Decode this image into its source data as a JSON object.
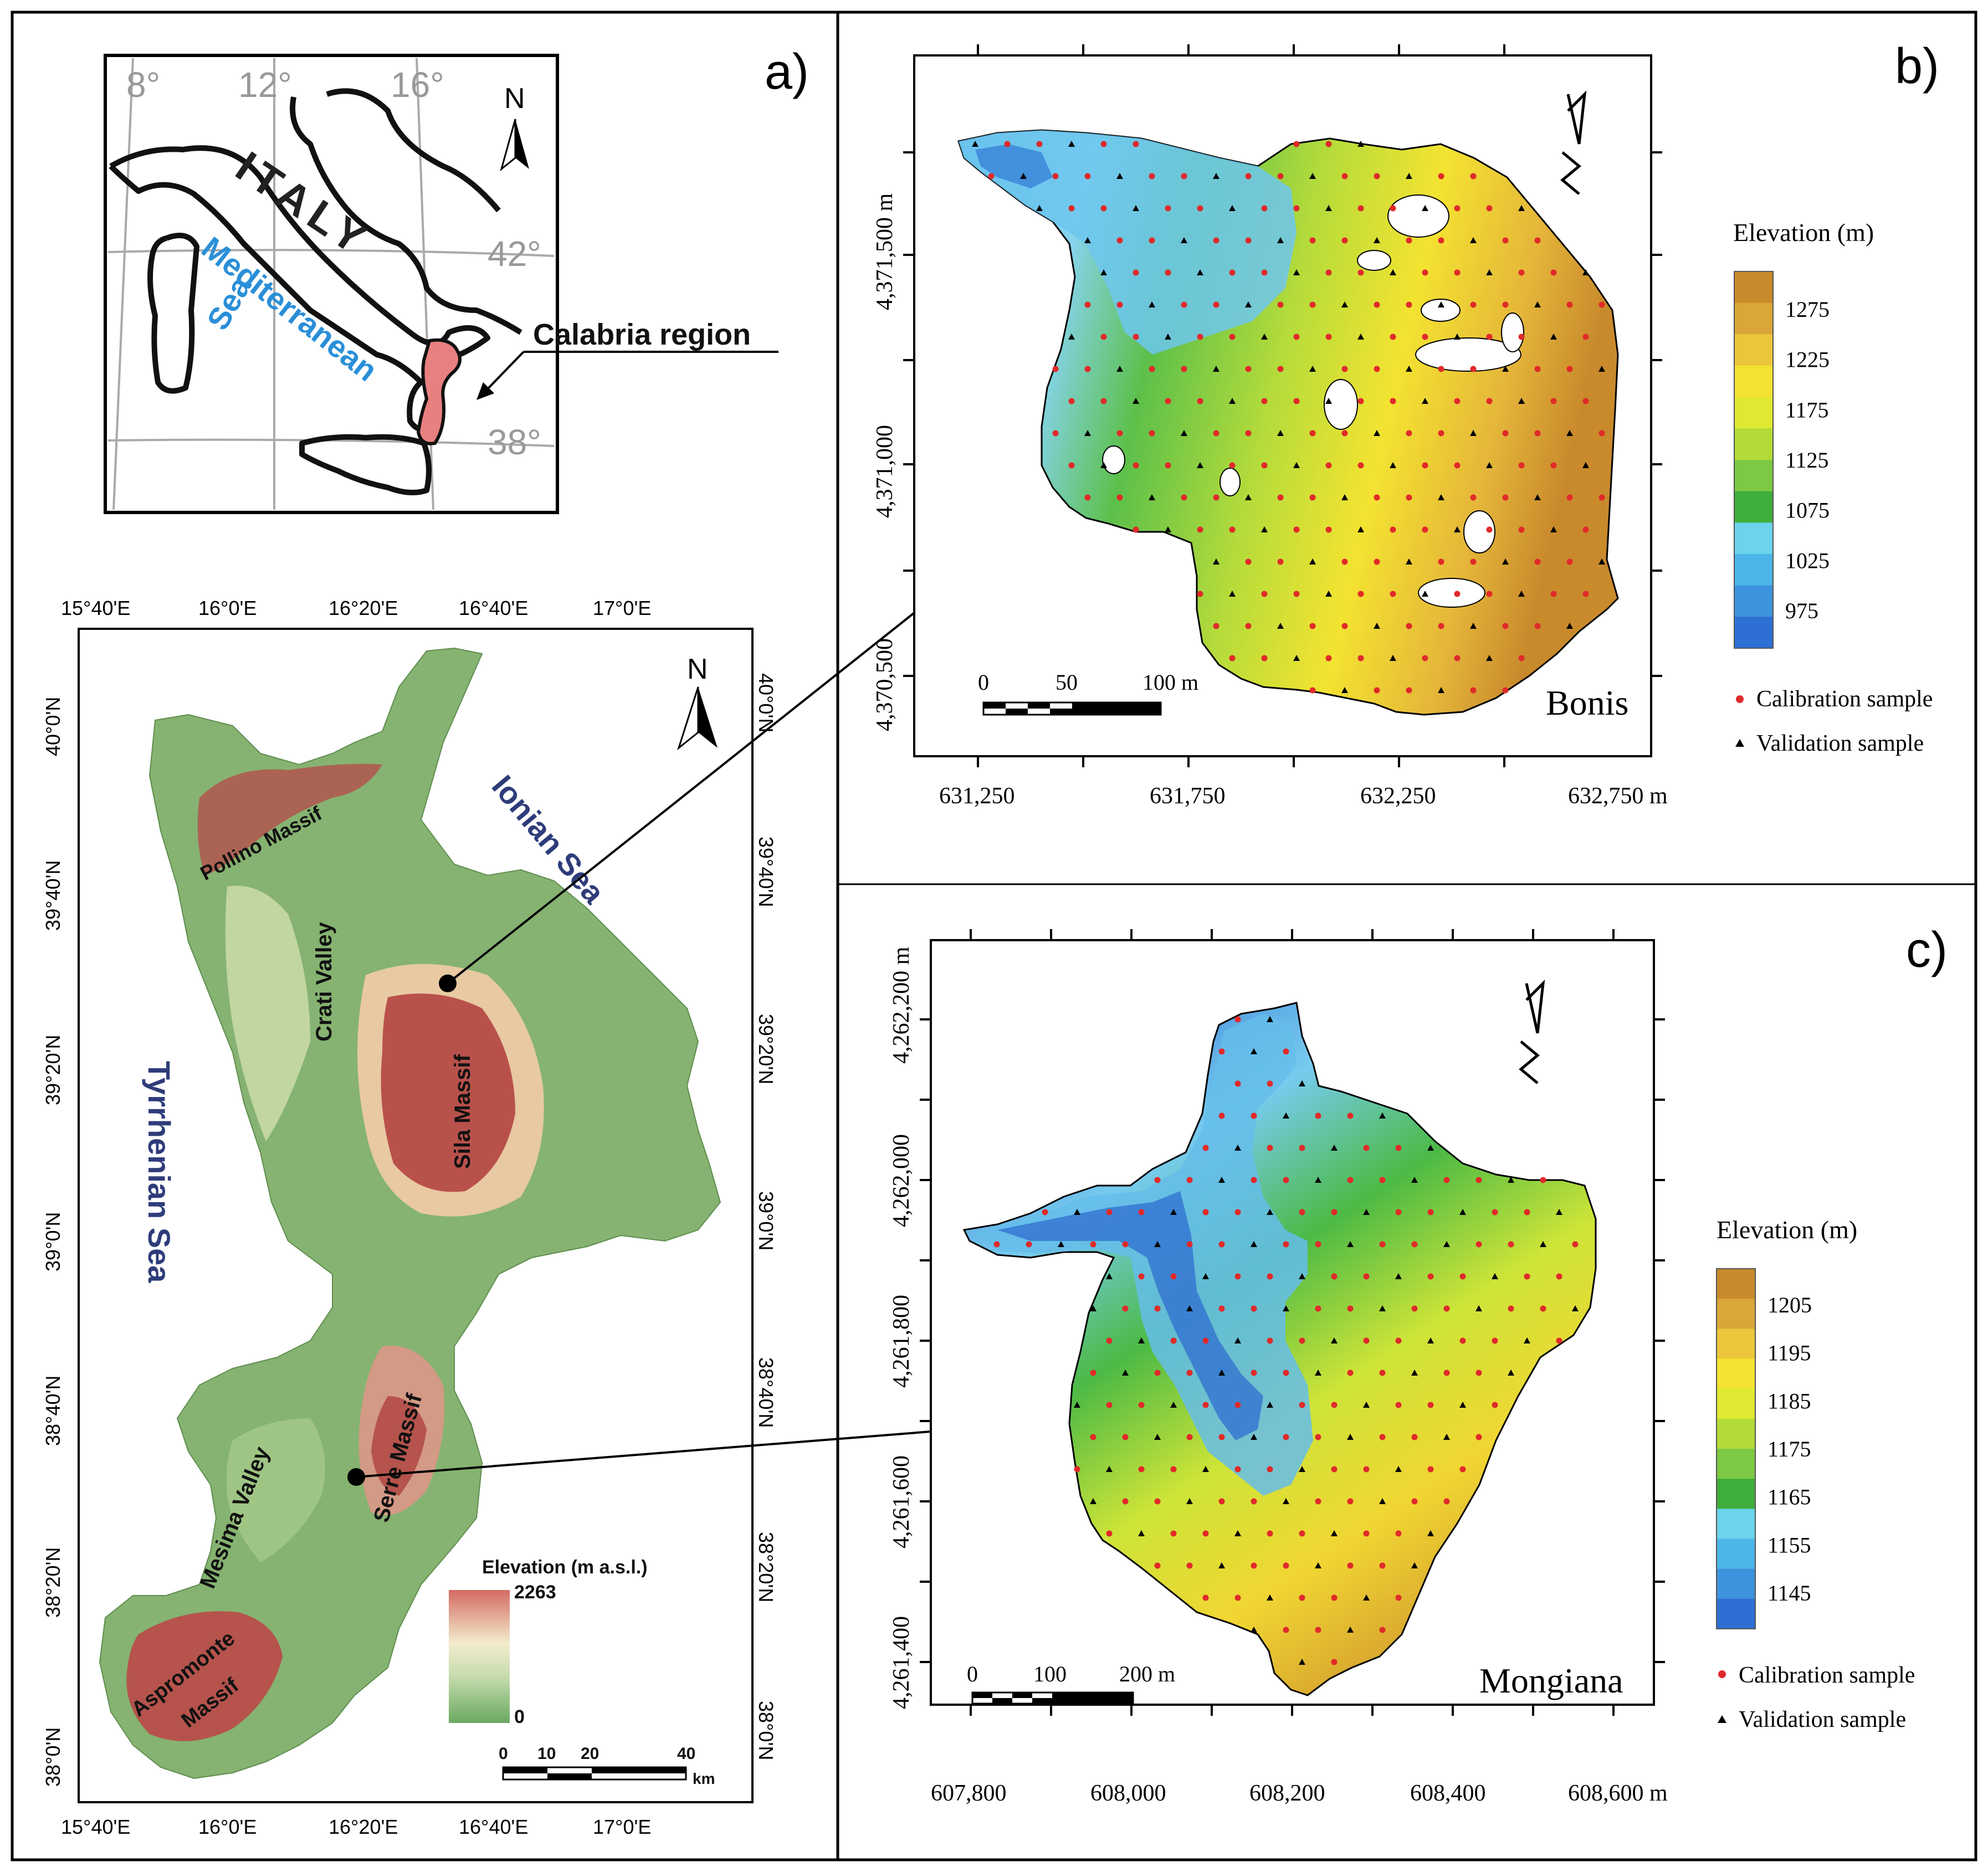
{
  "panels": {
    "a": {
      "label": "a)",
      "inset": {
        "lon_labels": [
          "8°",
          "12°",
          "16°"
        ],
        "lat_labels": [
          "42°",
          "38°"
        ],
        "north": "N",
        "country": "ITALY",
        "sea_line1": "Mediterranean",
        "sea_line2": "Sea",
        "region_label": "Calabria region"
      },
      "map": {
        "lon_ticks": [
          "15°40'E",
          "16°0'E",
          "16°20'E",
          "16°40'E",
          "17°0'E"
        ],
        "lat_ticks": [
          "40°0'N",
          "39°40'N",
          "39°20'N",
          "39°0'N",
          "38°40'N",
          "38°20'N",
          "38°0'N"
        ],
        "north": "N",
        "places": {
          "pollino": "Pollino Massif",
          "crati": "Crati Valley",
          "sila": "Sila Massif",
          "serre": "Serre Massif",
          "mesima": "Mesima Valley",
          "aspromonte_line1": "Aspromonte",
          "aspromonte_line2": "Massif"
        },
        "seas": {
          "ionian": "Ionian Sea",
          "tyrrhenian": "Tyrrhenian Sea"
        },
        "legend": {
          "title": "Elevation (m a.s.l.)",
          "max": "2263",
          "min": "0"
        },
        "scalebar": {
          "labels": [
            "0",
            "10",
            "20",
            "40"
          ],
          "unit": "km"
        }
      }
    },
    "b": {
      "label": "b)",
      "x_ticks": [
        "631,250",
        "631,750",
        "632,250",
        "632,750 m"
      ],
      "y_ticks": [
        "4,370,500",
        "4,371,000",
        "4,371,500 m"
      ],
      "site": "Bonis",
      "scalebar": [
        "0",
        "50",
        "100 m"
      ],
      "legend_title": "Elevation (m)",
      "legend_values": [
        "1275",
        "1225",
        "1175",
        "1125",
        "1075",
        "1025",
        "975"
      ],
      "legend_colors": [
        "#c88a2a",
        "#d9a637",
        "#ecc63a",
        "#f4e331",
        "#dfe932",
        "#b3db38",
        "#7dc943",
        "#3fae3b",
        "#6bd3ea",
        "#4cb6e8",
        "#3d93dd",
        "#2e6fd3"
      ],
      "calibration": "Calibration sample",
      "validation": "Validation sample"
    },
    "c": {
      "label": "c)",
      "x_ticks": [
        "607,800",
        "608,000",
        "608,200",
        "608,400",
        "608,600 m"
      ],
      "y_ticks": [
        "4,261,400",
        "4,261,600",
        "4,261,800",
        "4,262,000",
        "4,262,200 m"
      ],
      "site": "Mongiana",
      "scalebar": [
        "0",
        "100",
        "200 m"
      ],
      "legend_title": "Elevation (m)",
      "legend_values": [
        "1205",
        "1195",
        "1185",
        "1175",
        "1165",
        "1155",
        "1145"
      ],
      "legend_colors": [
        "#c88a2a",
        "#d9a637",
        "#ecc63a",
        "#f4e331",
        "#dfe932",
        "#b3db38",
        "#7dc943",
        "#3fae3b",
        "#6bd3ea",
        "#4cb6e8",
        "#3d93dd",
        "#2e6fd3"
      ],
      "calibration": "Calibration sample",
      "validation": "Validation sample"
    }
  }
}
